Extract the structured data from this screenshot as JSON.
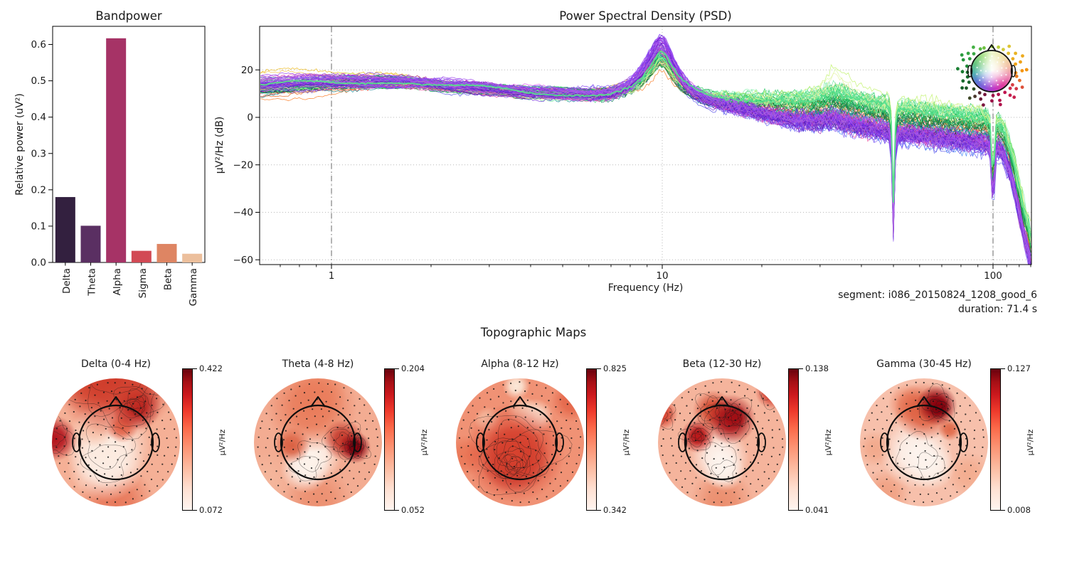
{
  "chart_data": [
    {
      "id": "bandpower",
      "type": "bar",
      "title": "Bandpower",
      "ylabel": "Relative power (uV²)",
      "xlabel": "",
      "categories": [
        "Delta",
        "Theta",
        "Alpha",
        "Sigma",
        "Beta",
        "Gamma"
      ],
      "values": [
        0.18,
        0.101,
        0.617,
        0.032,
        0.051,
        0.024
      ],
      "bar_colors": [
        "#33203f",
        "#5a2f62",
        "#a63366",
        "#d24a55",
        "#de8563",
        "#ecbf9c"
      ],
      "yticks": [
        0.0,
        0.1,
        0.2,
        0.3,
        0.4,
        0.5,
        0.6
      ],
      "ylim": [
        0,
        0.65
      ],
      "grid": false
    },
    {
      "id": "psd",
      "type": "line",
      "title": "Power Spectral Density (PSD)",
      "xlabel": "Frequency (Hz)",
      "ylabel": "µV²/Hz (dB)",
      "xscale": "log",
      "xlim": [
        0.61,
        130
      ],
      "ylim": [
        -62,
        38.5
      ],
      "xticks": [
        1,
        10,
        100
      ],
      "xticks_minor": [
        0.7,
        0.8,
        0.9,
        2,
        3,
        4,
        5,
        6,
        7,
        8,
        9,
        20,
        30,
        40,
        50,
        60,
        70,
        80,
        90,
        110,
        120,
        130
      ],
      "yticks": [
        20,
        0,
        -20,
        -40,
        -60
      ],
      "vlines_dashdot": [
        1,
        100
      ],
      "grid": true,
      "annotation_line1": "segment: i086_20150824_1208_good_6",
      "annotation_line2": "duration: 71.4 s",
      "n_channels": 112,
      "alpha_peak_hz": 10,
      "notch_dips_hz": [
        50,
        100
      ],
      "base_curve": [
        [
          0.61,
          13
        ],
        [
          0.8,
          14
        ],
        [
          1.0,
          14.5
        ],
        [
          1.3,
          15
        ],
        [
          1.7,
          14.8
        ],
        [
          2,
          14
        ],
        [
          2.5,
          13
        ],
        [
          3,
          12
        ],
        [
          3.5,
          11.2
        ],
        [
          4,
          10.5
        ],
        [
          5,
          10
        ],
        [
          6,
          9.6
        ],
        [
          7,
          10.2
        ],
        [
          8,
          12.5
        ],
        [
          8.7,
          15.5
        ],
        [
          9.3,
          20
        ],
        [
          9.8,
          24.5
        ],
        [
          10.2,
          23.5
        ],
        [
          10.8,
          18
        ],
        [
          11.5,
          13.5
        ],
        [
          12.5,
          10.5
        ],
        [
          14,
          8.2
        ],
        [
          16,
          6.8
        ],
        [
          18,
          5.6
        ],
        [
          20,
          4.6
        ],
        [
          23,
          3.6
        ],
        [
          26,
          3.0
        ],
        [
          30,
          3.2
        ],
        [
          33,
          4.6
        ],
        [
          35,
          3.4
        ],
        [
          38,
          2.2
        ],
        [
          42,
          1.2
        ],
        [
          46,
          0.4
        ],
        [
          48.5,
          -0.6
        ],
        [
          49.5,
          -10
        ],
        [
          50,
          -43
        ],
        [
          50.5,
          -10
        ],
        [
          51.5,
          -1.6
        ],
        [
          54,
          -1.4
        ],
        [
          58,
          -1.8
        ],
        [
          63,
          -2.4
        ],
        [
          70,
          -3.2
        ],
        [
          78,
          -4.0
        ],
        [
          86,
          -4.8
        ],
        [
          92,
          -5.2
        ],
        [
          96,
          -5.6
        ],
        [
          98.5,
          -9
        ],
        [
          99.6,
          -30
        ],
        [
          100,
          -49
        ],
        [
          100.5,
          -30
        ],
        [
          101.5,
          -9
        ],
        [
          103,
          -7.5
        ],
        [
          105,
          -8.5
        ],
        [
          108,
          -11
        ],
        [
          112,
          -17
        ],
        [
          116,
          -25
        ],
        [
          120,
          -35
        ],
        [
          124,
          -44
        ],
        [
          128,
          -52
        ],
        [
          130,
          -56
        ]
      ],
      "groups": [
        {
          "name": "orange",
          "colors": [
            "#f97316",
            "#fb8c38",
            "#e25c12"
          ],
          "n": 5,
          "peak": -3,
          "tail": -1,
          "head": -5,
          "bump": 0
        },
        {
          "name": "red",
          "colors": [
            "#e23d28",
            "#ef4444"
          ],
          "n": 3,
          "peak": -1,
          "tail": -3,
          "head": -2,
          "bump": 0
        },
        {
          "name": "crimson",
          "colors": [
            "#c2184b"
          ],
          "n": 2,
          "peak": 2,
          "tail": -4,
          "head": 0,
          "bump": 0
        },
        {
          "name": "gold",
          "colors": [
            "#eab308",
            "#f0c040"
          ],
          "n": 2,
          "peak": -2,
          "tail": 1,
          "head": 6,
          "bump": 0
        },
        {
          "name": "teal",
          "colors": [
            "#0e8898",
            "#14b8a6",
            "#0e7490"
          ],
          "n": 8,
          "peak": 1,
          "tail": -2,
          "head": -1,
          "bump": 0
        },
        {
          "name": "blue",
          "colors": [
            "#4f46e5",
            "#3b82f6",
            "#6366f1"
          ],
          "n": 9,
          "peak": 3,
          "tail": -7,
          "head": 0,
          "bump": 0
        },
        {
          "name": "navy",
          "colors": [
            "#1e2a5e",
            "#343465",
            "#23233f"
          ],
          "n": 6,
          "peak": 2,
          "tail": -6,
          "head": -1,
          "bump": 0
        },
        {
          "name": "darkgreen",
          "colors": [
            "#0b6e3a",
            "#15803d",
            "#047857"
          ],
          "n": 8,
          "peak": 0,
          "tail": 3,
          "head": 0,
          "bump": 0
        },
        {
          "name": "green",
          "colors": [
            "#16a34a",
            "#22c55e",
            "#2dd470"
          ],
          "n": 12,
          "peak": 1,
          "tail": 5,
          "head": 0,
          "bump": 1
        },
        {
          "name": "lightgreen",
          "colors": [
            "#4ade80",
            "#6ee7a0",
            "#86efac"
          ],
          "n": 10,
          "peak": 2,
          "tail": 7,
          "head": 1,
          "bump": 2
        },
        {
          "name": "paleyellow",
          "colors": [
            "#d9f99d",
            "#e5eea0",
            "#bef264"
          ],
          "n": 5,
          "peak": 0,
          "tail": 7,
          "head": 2,
          "bump": 6
        },
        {
          "name": "magenta",
          "colors": [
            "#c026d3",
            "#d946ef",
            "#a21caf"
          ],
          "n": 9,
          "peak": 7,
          "tail": -5,
          "head": 1,
          "bump": 0
        },
        {
          "name": "pink",
          "colors": [
            "#ec4899",
            "#f472b6"
          ],
          "n": 5,
          "peak": 5,
          "tail": -4,
          "head": 2,
          "bump": 0
        },
        {
          "name": "purple",
          "colors": [
            "#7c3aed",
            "#6d28d9",
            "#8b5cf6",
            "#5b21b6",
            "#9333ea"
          ],
          "n": 22,
          "peak": 8,
          "tail": -6,
          "head": 1,
          "bump": 0
        },
        {
          "name": "violet",
          "colors": [
            "#a855f7",
            "#b06ad8"
          ],
          "n": 6,
          "peak": 6,
          "tail": -5,
          "head": 1,
          "bump": 0
        }
      ],
      "highlight": {
        "color": "#57de8c",
        "width": 2.0,
        "peak": 2,
        "tail": 5
      },
      "inset": {
        "dot_color_anchors": [
          [
            0,
            "#f5930f"
          ],
          [
            35,
            "#eab223"
          ],
          [
            60,
            "#d9cb3a"
          ],
          [
            80,
            "#abcf3e"
          ],
          [
            100,
            "#7cc83e"
          ],
          [
            130,
            "#3fae46"
          ],
          [
            165,
            "#1f8f3a"
          ],
          [
            185,
            "#17752f"
          ],
          [
            210,
            "#135f28"
          ],
          [
            230,
            "#3d4a26"
          ],
          [
            245,
            "#5c1e33"
          ],
          [
            262,
            "#8c1345"
          ],
          [
            278,
            "#a81048"
          ],
          [
            300,
            "#bf1250"
          ],
          [
            322,
            "#d1304b"
          ],
          [
            342,
            "#e86a28"
          ],
          [
            360,
            "#f5930f"
          ]
        ],
        "conic_stops": [
          [
            0,
            "#eef7cf"
          ],
          [
            40,
            "#f2e4ae"
          ],
          [
            75,
            "#f3bfa6"
          ],
          [
            105,
            "#ee93b5"
          ],
          [
            140,
            "#e23f9e"
          ],
          [
            170,
            "#c136c4"
          ],
          [
            200,
            "#8e52da"
          ],
          [
            235,
            "#5b78d6"
          ],
          [
            265,
            "#51b4ad"
          ],
          [
            295,
            "#67c57f"
          ],
          [
            330,
            "#abe18e"
          ],
          [
            360,
            "#eef7cf"
          ]
        ]
      }
    },
    {
      "id": "topomaps",
      "type": "heatmap-topo",
      "suptitle": "Topographic Maps",
      "cbar_label": "µV²/Hz",
      "colormap_name": "Reds",
      "colormap_stops": [
        "#fff5f0",
        "#fee0d2",
        "#fcbba1",
        "#fc9272",
        "#fb6a4a",
        "#ef3b2c",
        "#cb181d",
        "#a50f15",
        "#67000d"
      ],
      "maps": [
        {
          "band": "delta",
          "title": "Delta (0-4 Hz)",
          "vmax": 0.422,
          "vmin": 0.072,
          "base": "#f5b096",
          "spots": [
            {
              "x": 50,
              "y": -2,
              "r": 55,
              "c": "#cf3b2a"
            },
            {
              "x": 30,
              "y": 2,
              "r": 30,
              "c": "#db5a40"
            },
            {
              "x": 66,
              "y": 21,
              "r": 22,
              "c": "#a50f15"
            },
            {
              "x": 66,
              "y": 21,
              "r": 10,
              "c": "#73030d"
            },
            {
              "x": 2,
              "y": 47,
              "r": 20,
              "c": "#b1121b"
            },
            {
              "x": 55,
              "y": 38,
              "r": 14,
              "c": "#e4674b"
            },
            {
              "x": 34,
              "y": 38,
              "r": 18,
              "c": "#f7c0a8"
            },
            {
              "x": 44,
              "y": 52,
              "r": 38,
              "c": "#fcebe0"
            },
            {
              "x": 42,
              "y": 66,
              "r": 34,
              "c": "#fdf3ec"
            },
            {
              "x": 50,
              "y": 97,
              "r": 34,
              "c": "#e87a5c"
            }
          ]
        },
        {
          "band": "theta",
          "title": "Theta (4-8 Hz)",
          "vmax": 0.204,
          "vmin": 0.052,
          "base": "#f3ac92",
          "spots": [
            {
              "x": 79,
              "y": 54,
              "r": 14,
              "c": "#8c000d"
            },
            {
              "x": 79,
              "y": 54,
              "r": 7,
              "c": "#5f0009"
            },
            {
              "x": 70,
              "y": 48,
              "r": 18,
              "c": "#c4392c"
            },
            {
              "x": 45,
              "y": 22,
              "r": 40,
              "c": "#e97c5b"
            },
            {
              "x": 50,
              "y": 12,
              "r": 25,
              "c": "#ed8a67"
            },
            {
              "x": 30,
              "y": 52,
              "r": 16,
              "c": "#d95f41"
            },
            {
              "x": 46,
              "y": 60,
              "r": 26,
              "c": "#fdf2ea"
            },
            {
              "x": 40,
              "y": 70,
              "r": 22,
              "c": "#fdf4ee"
            },
            {
              "x": 8,
              "y": 80,
              "r": 25,
              "c": "#f4b69c"
            },
            {
              "x": 50,
              "y": 95,
              "r": 30,
              "c": "#ec9071"
            }
          ]
        },
        {
          "band": "alpha",
          "title": "Alpha (8-12 Hz)",
          "vmax": 0.825,
          "vmin": 0.342,
          "base": "#f09275",
          "spots": [
            {
              "x": 46,
              "y": 58,
              "r": 44,
              "c": "#d8432f"
            },
            {
              "x": 46,
              "y": 63,
              "r": 30,
              "c": "#a50f15"
            },
            {
              "x": 44,
              "y": 64,
              "r": 18,
              "c": "#7a020f"
            },
            {
              "x": 45,
              "y": 67,
              "r": 10,
              "c": "#600009"
            },
            {
              "x": 62,
              "y": 30,
              "r": 16,
              "c": "#fbe3d2"
            },
            {
              "x": 52,
              "y": 26,
              "r": 14,
              "c": "#f8cdb4"
            },
            {
              "x": 47,
              "y": 6,
              "r": 12,
              "c": "#fbe8d8"
            },
            {
              "x": 25,
              "y": 33,
              "r": 12,
              "c": "#f6c3a8"
            },
            {
              "x": 90,
              "y": 18,
              "r": 18,
              "c": "#e5674a"
            },
            {
              "x": 8,
              "y": 60,
              "r": 18,
              "c": "#ea7858"
            }
          ]
        },
        {
          "band": "beta",
          "title": "Beta (12-30 Hz)",
          "vmax": 0.138,
          "vmin": 0.041,
          "base": "#f5b49c",
          "spots": [
            {
              "x": 57,
              "y": 32,
              "r": 22,
              "c": "#a50f15"
            },
            {
              "x": 60,
              "y": 30,
              "r": 11,
              "c": "#73030d"
            },
            {
              "x": 43,
              "y": 25,
              "r": 18,
              "c": "#d34a31"
            },
            {
              "x": 31,
              "y": 45,
              "r": 15,
              "c": "#bb1a1b"
            },
            {
              "x": 31,
              "y": 45,
              "r": 7,
              "c": "#8c000d"
            },
            {
              "x": 90,
              "y": 10,
              "r": 16,
              "c": "#cc2d20"
            },
            {
              "x": 3,
              "y": 28,
              "r": 14,
              "c": "#d6402e"
            },
            {
              "x": 48,
              "y": 62,
              "r": 26,
              "c": "#fdf4ee"
            },
            {
              "x": 52,
              "y": 72,
              "r": 18,
              "c": "#fcf0e8"
            },
            {
              "x": 50,
              "y": 96,
              "r": 28,
              "c": "#eb8f6f"
            }
          ]
        },
        {
          "band": "gamma",
          "title": "Gamma (30-45 Hz)",
          "vmax": 0.127,
          "vmin": 0.008,
          "base": "#f7c0ab",
          "spots": [
            {
              "x": 60,
              "y": 21,
              "r": 18,
              "c": "#8c000d"
            },
            {
              "x": 62,
              "y": 23,
              "r": 9,
              "c": "#5f0009"
            },
            {
              "x": 50,
              "y": 26,
              "r": 26,
              "c": "#dd5f41"
            },
            {
              "x": 38,
              "y": 20,
              "r": 18,
              "c": "#eb8363"
            },
            {
              "x": 70,
              "y": 40,
              "r": 10,
              "c": "#e06a4a"
            },
            {
              "x": 44,
              "y": 58,
              "r": 32,
              "c": "#fdf4ee"
            },
            {
              "x": 55,
              "y": 68,
              "r": 22,
              "c": "#fcf2ea"
            },
            {
              "x": 12,
              "y": 55,
              "r": 16,
              "c": "#f2a98c"
            },
            {
              "x": 85,
              "y": 75,
              "r": 20,
              "c": "#f3ad90"
            },
            {
              "x": 20,
              "y": 90,
              "r": 22,
              "c": "#f0a183"
            }
          ]
        }
      ]
    }
  ]
}
